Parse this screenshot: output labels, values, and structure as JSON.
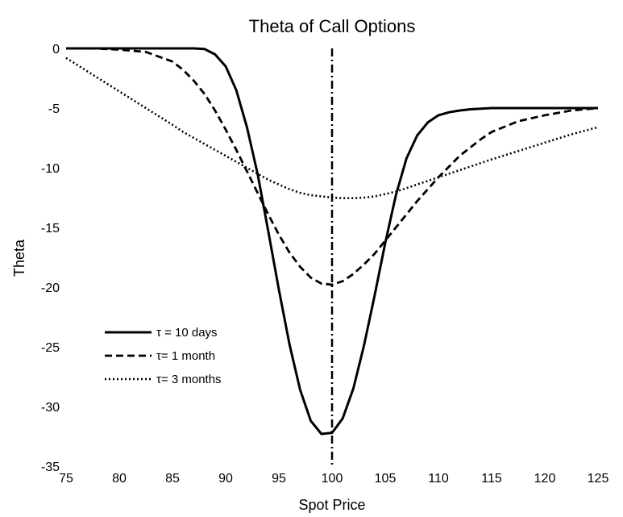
{
  "chart_data": {
    "type": "line",
    "title": "Theta of Call Options",
    "xlabel": "Spot Price",
    "ylabel": "Theta",
    "xlim": [
      75,
      125
    ],
    "ylim": [
      -35,
      0
    ],
    "x_ticks": [
      75,
      80,
      85,
      90,
      95,
      100,
      105,
      110,
      115,
      120,
      125
    ],
    "y_ticks": [
      0,
      -5,
      -10,
      -15,
      -20,
      -25,
      -30,
      -35
    ],
    "grid": false,
    "legend_position": "lower-left",
    "vertical_reference_line": {
      "x": 100,
      "style": "dash-dot"
    },
    "x": [
      75,
      77.5,
      80,
      82.5,
      85,
      86,
      87,
      88,
      89,
      90,
      91,
      92,
      93,
      94,
      95,
      96,
      97,
      98,
      99,
      100,
      101,
      102,
      103,
      104,
      105,
      106,
      107,
      108,
      109,
      110,
      111,
      112,
      113,
      114,
      115,
      117.5,
      120,
      122.5,
      125
    ],
    "series": [
      {
        "name": "τ = 10 days",
        "style": "solid",
        "values": [
          0,
          0,
          0,
          0,
          0,
          0,
          0,
          -0.05,
          -0.5,
          -1.5,
          -3.5,
          -6.6,
          -10.5,
          -15.3,
          -20.2,
          -24.8,
          -28.6,
          -31.2,
          -32.3,
          -32.2,
          -31,
          -28.5,
          -24.9,
          -20.7,
          -16.3,
          -12.3,
          -9.2,
          -7.3,
          -6.2,
          -5.6,
          -5.35,
          -5.2,
          -5.1,
          -5.05,
          -5,
          -5,
          -5,
          -5,
          -5
        ]
      },
      {
        "name": "τ= 1 month",
        "style": "dashed",
        "values": [
          0,
          0,
          -0.1,
          -0.3,
          -1.1,
          -1.8,
          -2.7,
          -3.8,
          -5.2,
          -6.8,
          -8.5,
          -10.3,
          -12.1,
          -13.9,
          -15.6,
          -17.1,
          -18.3,
          -19.2,
          -19.7,
          -19.8,
          -19.5,
          -18.9,
          -18.1,
          -17.2,
          -16.1,
          -15,
          -13.9,
          -12.8,
          -11.8,
          -10.8,
          -9.9,
          -9,
          -8.3,
          -7.6,
          -7,
          -6.1,
          -5.6,
          -5.2,
          -5
        ]
      },
      {
        "name": "τ= 3 months",
        "style": "dotted",
        "values": [
          -0.8,
          -2.2,
          -3.6,
          -5,
          -6.4,
          -7,
          -7.5,
          -8,
          -8.5,
          -9,
          -9.5,
          -10,
          -10.5,
          -11,
          -11.4,
          -11.8,
          -12.1,
          -12.3,
          -12.4,
          -12.5,
          -12.55,
          -12.55,
          -12.5,
          -12.4,
          -12.2,
          -12,
          -11.7,
          -11.4,
          -11.1,
          -10.8,
          -10.5,
          -10.2,
          -9.9,
          -9.6,
          -9.3,
          -8.6,
          -7.9,
          -7.2,
          -6.6
        ]
      }
    ]
  }
}
